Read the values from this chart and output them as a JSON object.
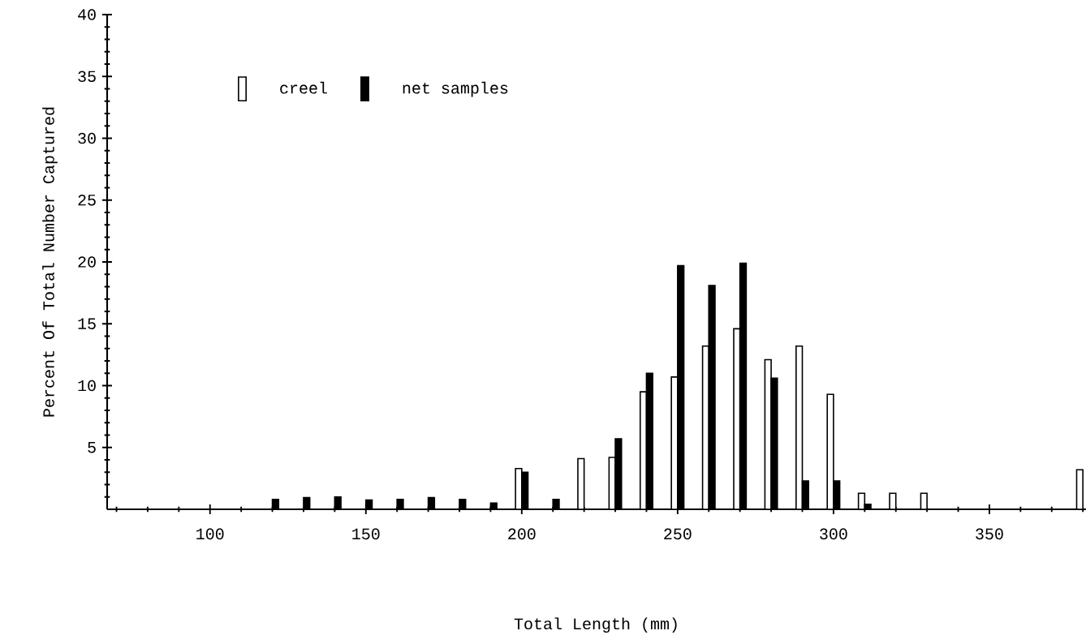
{
  "chart_data": {
    "type": "bar",
    "xlabel": "Total Length (mm)",
    "ylabel": "Percent Of Total Number Captured",
    "x": [
      120,
      130,
      140,
      150,
      160,
      170,
      180,
      190,
      200,
      210,
      220,
      230,
      240,
      250,
      260,
      270,
      280,
      290,
      300,
      310,
      320,
      330,
      340,
      350,
      360,
      370,
      380
    ],
    "series": [
      {
        "name": "creel",
        "color": "#ffffff",
        "values": [
          null,
          null,
          null,
          null,
          null,
          null,
          null,
          null,
          3.3,
          null,
          4.1,
          4.2,
          9.5,
          10.7,
          13.2,
          14.6,
          12.1,
          13.2,
          9.3,
          1.3,
          1.3,
          1.3,
          null,
          null,
          null,
          null,
          3.2
        ]
      },
      {
        "name": "net samples",
        "color": "#000000",
        "values": [
          0.8,
          0.95,
          1.0,
          0.75,
          0.8,
          0.95,
          0.8,
          0.5,
          3.0,
          0.8,
          null,
          5.7,
          11.0,
          19.7,
          18.1,
          19.9,
          10.6,
          2.3,
          2.3,
          0.4,
          null,
          null,
          null,
          null,
          null,
          null,
          null
        ]
      }
    ],
    "xlim": [
      67,
      381
    ],
    "ylim": [
      0,
      40
    ],
    "xticks": [
      {
        "value": 70,
        "label": null
      },
      {
        "value": 80,
        "label": null
      },
      {
        "value": 90,
        "label": null
      },
      100,
      {
        "value": 110,
        "label": null
      },
      {
        "value": 120,
        "label": null
      },
      {
        "value": 130,
        "label": null
      },
      {
        "value": 140,
        "label": null
      },
      150,
      {
        "value": 160,
        "label": null
      },
      {
        "value": 170,
        "label": null
      },
      {
        "value": 180,
        "label": null
      },
      {
        "value": 190,
        "label": null
      },
      200,
      {
        "value": 210,
        "label": null
      },
      {
        "value": 220,
        "label": null
      },
      {
        "value": 230,
        "label": null
      },
      {
        "value": 240,
        "label": null
      },
      250,
      {
        "value": 260,
        "label": null
      },
      {
        "value": 270,
        "label": null
      },
      {
        "value": 280,
        "label": null
      },
      {
        "value": 290,
        "label": null
      },
      300,
      {
        "value": 310,
        "label": null
      },
      {
        "value": 320,
        "label": null
      },
      {
        "value": 330,
        "label": null
      },
      {
        "value": 340,
        "label": null
      },
      350,
      {
        "value": 360,
        "label": null
      },
      {
        "value": 370,
        "label": null
      },
      {
        "value": 380,
        "label": null
      }
    ],
    "yticks": [
      {
        "value": 1,
        "label": null
      },
      {
        "value": 2,
        "label": null
      },
      {
        "value": 3,
        "label": null
      },
      {
        "value": 4,
        "label": null
      },
      5,
      {
        "value": 6,
        "label": null
      },
      {
        "value": 7,
        "label": null
      },
      {
        "value": 8,
        "label": null
      },
      {
        "value": 9,
        "label": null
      },
      10,
      {
        "value": 11,
        "label": null
      },
      {
        "value": 12,
        "label": null
      },
      {
        "value": 13,
        "label": null
      },
      {
        "value": 14,
        "label": null
      },
      15,
      {
        "value": 16,
        "label": null
      },
      {
        "value": 17,
        "label": null
      },
      {
        "value": 18,
        "label": null
      },
      {
        "value": 19,
        "label": null
      },
      20,
      {
        "value": 21,
        "label": null
      },
      {
        "value": 22,
        "label": null
      },
      {
        "value": 23,
        "label": null
      },
      {
        "value": 24,
        "label": null
      },
      25,
      {
        "value": 26,
        "label": null
      },
      {
        "value": 27,
        "label": null
      },
      {
        "value": 28,
        "label": null
      },
      {
        "value": 29,
        "label": null
      },
      30,
      {
        "value": 31,
        "label": null
      },
      {
        "value": 32,
        "label": null
      },
      {
        "value": 33,
        "label": null
      },
      {
        "value": 34,
        "label": null
      },
      35,
      {
        "value": 36,
        "label": null
      },
      {
        "value": 37,
        "label": null
      },
      {
        "value": 38,
        "label": null
      },
      {
        "value": 39,
        "label": null
      },
      40
    ],
    "legend": "top left",
    "grid": false
  }
}
